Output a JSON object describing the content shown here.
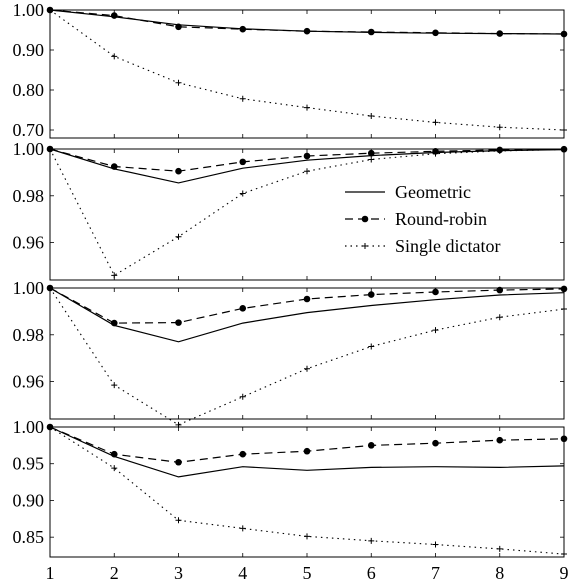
{
  "chart_data": [
    {
      "type": "line",
      "x": [
        1,
        2,
        3,
        4,
        5,
        6,
        7,
        8,
        9
      ],
      "ylim": [
        0.68,
        1.0
      ],
      "yticks": [
        "1.00",
        "0.90",
        "0.80",
        "0.70"
      ],
      "series": [
        {
          "style": "solid",
          "values": [
            1.0,
            0.983,
            0.963,
            0.953,
            0.947,
            0.944,
            0.942,
            0.941,
            0.94
          ]
        },
        {
          "style": "dashed",
          "values": [
            1.0,
            0.986,
            0.958,
            0.952,
            0.947,
            0.945,
            0.943,
            0.941,
            0.94
          ]
        },
        {
          "style": "dotted",
          "values": [
            1.0,
            0.884,
            0.818,
            0.778,
            0.756,
            0.735,
            0.719,
            0.707,
            0.7
          ]
        }
      ]
    },
    {
      "type": "line",
      "x": [
        1,
        2,
        3,
        4,
        5,
        6,
        7,
        8,
        9
      ],
      "ylim": [
        0.944,
        1.0
      ],
      "yticks": [
        "1.00",
        "0.98",
        "0.96"
      ],
      "legend": {
        "position": "right",
        "entries": [
          {
            "name": "Geometric",
            "style": "solid"
          },
          {
            "name": "Round-robin",
            "style": "dashed"
          },
          {
            "name": "Single dictator",
            "style": "dotted"
          }
        ]
      },
      "series": [
        {
          "name": "Geometric",
          "style": "solid",
          "values": [
            1.0,
            0.9915,
            0.9855,
            0.9918,
            0.9952,
            0.9972,
            0.9985,
            0.9993,
            0.9997
          ]
        },
        {
          "name": "Round-robin",
          "style": "dashed",
          "values": [
            1.0,
            0.9925,
            0.9905,
            0.9945,
            0.997,
            0.9982,
            0.999,
            0.9996,
            0.9999
          ]
        },
        {
          "name": "Single dictator",
          "style": "dotted",
          "values": [
            1.0,
            0.946,
            0.9625,
            0.981,
            0.9905,
            0.9955,
            0.998,
            0.9992,
            0.9998
          ]
        }
      ]
    },
    {
      "type": "line",
      "x": [
        1,
        2,
        3,
        4,
        5,
        6,
        7,
        8,
        9
      ],
      "ylim": [
        0.944,
        1.0
      ],
      "yticks": [
        "1.00",
        "0.98",
        "0.96"
      ],
      "series": [
        {
          "style": "solid",
          "values": [
            1.0,
            0.984,
            0.977,
            0.985,
            0.9895,
            0.9925,
            0.995,
            0.997,
            0.998
          ]
        },
        {
          "style": "dashed",
          "values": [
            1.0,
            0.985,
            0.9852,
            0.9913,
            0.9953,
            0.9972,
            0.9983,
            0.9991,
            0.9996
          ]
        },
        {
          "style": "dotted",
          "values": [
            1.0,
            0.9585,
            0.9415,
            0.9535,
            0.9655,
            0.975,
            0.982,
            0.9875,
            0.991
          ]
        }
      ]
    },
    {
      "type": "line",
      "x": [
        1,
        2,
        3,
        4,
        5,
        6,
        7,
        8,
        9
      ],
      "ylim": [
        0.823,
        1.0
      ],
      "yticks": [
        "1.00",
        "0.95",
        "0.90",
        "0.85"
      ],
      "xticks": [
        "1",
        "2",
        "3",
        "4",
        "5",
        "6",
        "7",
        "8",
        "9"
      ],
      "series": [
        {
          "style": "solid",
          "values": [
            1.0,
            0.96,
            0.932,
            0.946,
            0.941,
            0.945,
            0.946,
            0.945,
            0.947
          ]
        },
        {
          "style": "dashed",
          "values": [
            1.0,
            0.963,
            0.952,
            0.963,
            0.967,
            0.975,
            0.978,
            0.982,
            0.984
          ]
        },
        {
          "style": "dotted",
          "values": [
            1.0,
            0.944,
            0.873,
            0.862,
            0.851,
            0.845,
            0.84,
            0.834,
            0.827
          ]
        }
      ]
    }
  ]
}
